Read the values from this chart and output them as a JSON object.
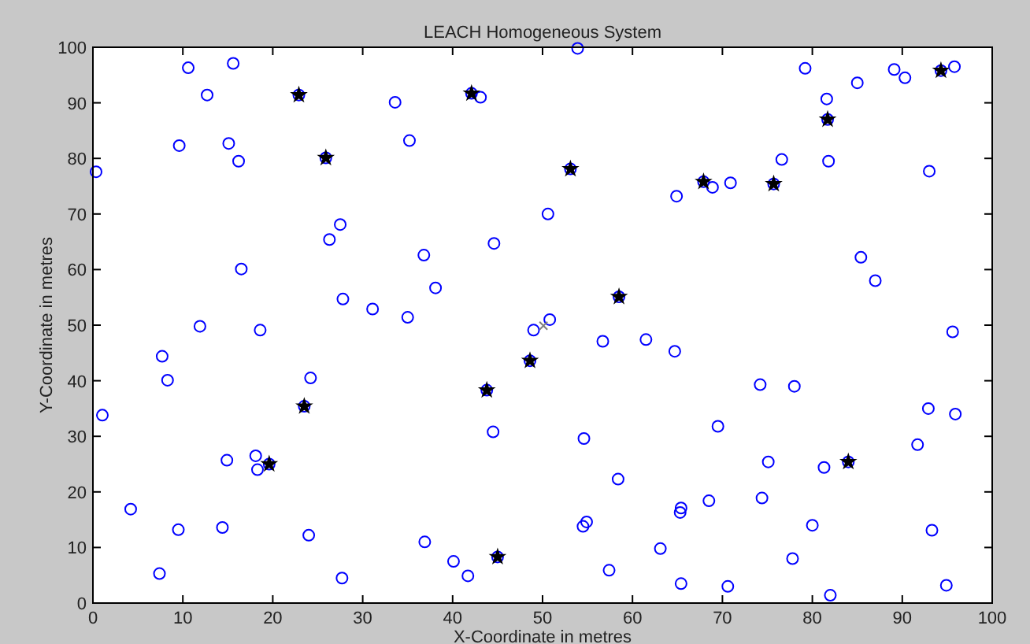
{
  "chart_data": {
    "type": "scatter",
    "title": "LEACH Homogeneous System",
    "xlabel": "X-Coordinate in metres",
    "ylabel": "Y-Coordinate in metres",
    "xlim": [
      0,
      100
    ],
    "ylim": [
      0,
      100
    ],
    "xticks": [
      0,
      10,
      20,
      30,
      40,
      50,
      60,
      70,
      80,
      90,
      100
    ],
    "yticks": [
      0,
      10,
      20,
      30,
      40,
      50,
      60,
      70,
      80,
      90,
      100
    ],
    "grid": false,
    "series": [
      {
        "color": "#0000ff",
        "marker": "circle",
        "x": [
          0.35,
          10.6,
          12.7,
          15.6,
          22.9,
          9.6,
          15.1,
          16.2,
          25.9,
          27.5,
          26.3,
          16.5,
          27.8,
          31.1,
          11.9,
          18.6,
          7.7,
          8.3,
          24.2,
          23.5,
          1.05,
          14.9,
          18.1,
          18.3,
          19.6,
          4.2,
          9.5,
          14.4,
          24.0,
          7.4,
          27.7,
          53.9,
          33.6,
          42.1,
          43.1,
          35.2,
          53.1,
          64.9,
          50.6,
          44.6,
          36.8,
          38.1,
          58.5,
          35.0,
          49.0,
          50.8,
          56.7,
          61.5,
          64.7,
          48.6,
          43.8,
          44.5,
          54.6,
          58.4,
          68.5,
          65.4,
          65.3,
          54.9,
          54.5,
          36.9,
          63.1,
          40.1,
          45.0,
          41.7,
          57.4,
          65.4,
          79.2,
          85.0,
          89.1,
          90.3,
          94.3,
          95.8,
          81.6,
          81.7,
          76.6,
          81.8,
          93.0,
          67.9,
          68.9,
          70.9,
          75.7,
          85.4,
          87.0,
          95.6,
          74.2,
          78.0,
          92.9,
          95.9,
          69.5,
          91.7,
          75.1,
          81.3,
          84.0,
          74.4,
          80.0,
          93.3,
          77.8,
          70.6,
          94.9,
          82.0
        ],
        "values": [
          77.6,
          96.3,
          91.4,
          97.1,
          91.4,
          82.3,
          82.7,
          79.5,
          80.1,
          68.1,
          65.4,
          60.1,
          54.7,
          52.9,
          49.8,
          49.1,
          44.4,
          40.1,
          40.5,
          35.4,
          33.8,
          25.7,
          26.5,
          24.0,
          25.0,
          16.9,
          13.2,
          13.6,
          12.2,
          5.3,
          4.5,
          99.8,
          90.1,
          91.7,
          91.0,
          83.2,
          78.1,
          73.2,
          70.0,
          64.7,
          62.6,
          56.7,
          55.1,
          51.4,
          49.1,
          51.0,
          47.1,
          47.4,
          45.3,
          43.6,
          38.3,
          30.8,
          29.6,
          22.3,
          18.4,
          17.1,
          16.3,
          14.6,
          13.8,
          11.0,
          9.8,
          7.5,
          8.3,
          4.9,
          5.9,
          3.5,
          96.2,
          93.6,
          96.0,
          94.5,
          95.8,
          96.5,
          90.7,
          87.0,
          79.8,
          79.5,
          77.7,
          75.8,
          74.8,
          75.6,
          75.4,
          62.2,
          58.0,
          48.8,
          39.3,
          39.0,
          35.0,
          34.0,
          31.8,
          28.5,
          25.4,
          24.4,
          25.4,
          18.9,
          14.0,
          13.1,
          8.0,
          3.0,
          3.2,
          1.4
        ]
      },
      {
        "color": "#000000",
        "marker": "star",
        "x": [
          22.9,
          25.9,
          42.1,
          53.1,
          67.9,
          75.7,
          81.7,
          94.3,
          58.5,
          48.6,
          43.8,
          23.5,
          19.6,
          45.0,
          84.0
        ],
        "values": [
          91.4,
          80.1,
          91.7,
          78.1,
          75.8,
          75.4,
          87.0,
          95.8,
          55.1,
          43.6,
          38.3,
          35.4,
          25.0,
          8.3,
          25.4
        ]
      },
      {
        "color": "#808080",
        "marker": "cross",
        "x": [
          50.1
        ],
        "values": [
          49.9
        ]
      }
    ]
  }
}
